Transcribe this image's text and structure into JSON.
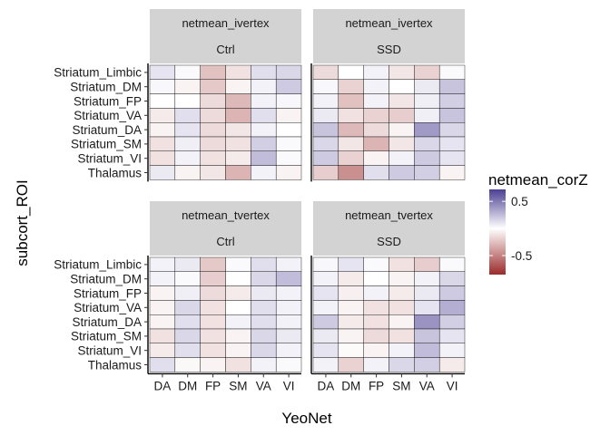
{
  "chart_data": {
    "type": "heatmap",
    "xlabel": "YeoNet",
    "ylabel": "subcort_ROI",
    "x_categories": [
      "DA",
      "DM",
      "FP",
      "SM",
      "VA",
      "VI"
    ],
    "y_categories": [
      "Striatum_Limbic",
      "Striatum_DM",
      "Striatum_FP",
      "Striatum_VA",
      "Striatum_DA",
      "Striatum_SM",
      "Striatum_VI",
      "Thalamus"
    ],
    "legend": {
      "title": "netmean_corZ",
      "ticks": [
        {
          "label": "0.5",
          "value": 0.5
        },
        {
          "label": "-0.5",
          "value": -0.5
        }
      ],
      "range": [
        -0.85,
        0.72
      ],
      "colors": {
        "low": "#9b2b2b",
        "mid": "#ffffff",
        "high": "#4b3f93"
      },
      "placement": "right"
    },
    "panels": [
      {
        "row_label": "netmean_ivertex",
        "col_label": "Ctrl",
        "values": [
          [
            0.1,
            0.02,
            -0.25,
            -0.12,
            0.12,
            0.15
          ],
          [
            0.03,
            -0.05,
            -0.22,
            -0.05,
            0.05,
            0.2
          ],
          [
            0.0,
            0.0,
            -0.15,
            -0.28,
            0.05,
            0.03
          ],
          [
            -0.08,
            0.12,
            -0.15,
            -0.3,
            0.12,
            -0.05
          ],
          [
            -0.05,
            0.1,
            -0.15,
            -0.1,
            0.05,
            0.0
          ],
          [
            -0.12,
            0.06,
            -0.15,
            -0.12,
            0.18,
            0.02
          ],
          [
            -0.12,
            0.05,
            -0.12,
            -0.08,
            0.25,
            0.02
          ],
          [
            0.08,
            -0.05,
            -0.1,
            -0.3,
            0.05,
            -0.05
          ]
        ]
      },
      {
        "row_label": "netmean_ivertex",
        "col_label": "SSD",
        "values": [
          [
            -0.15,
            0.0,
            0.05,
            -0.1,
            -0.18,
            0.02
          ],
          [
            0.03,
            -0.18,
            0.05,
            0.0,
            0.08,
            0.22
          ],
          [
            0.05,
            -0.25,
            0.05,
            -0.1,
            0.06,
            0.18
          ],
          [
            0.08,
            -0.12,
            -0.18,
            -0.2,
            0.06,
            0.22
          ],
          [
            0.22,
            -0.28,
            -0.15,
            -0.05,
            0.38,
            0.15
          ],
          [
            0.15,
            -0.1,
            -0.3,
            -0.1,
            0.15,
            0.1
          ],
          [
            0.2,
            -0.18,
            -0.05,
            0.05,
            0.2,
            0.1
          ],
          [
            -0.2,
            -0.45,
            0.12,
            0.2,
            0.18,
            -0.05
          ]
        ]
      },
      {
        "row_label": "netmean_tvertex",
        "col_label": "Ctrl",
        "values": [
          [
            0.05,
            0.08,
            -0.22,
            0.02,
            0.12,
            0.05
          ],
          [
            0.05,
            0.02,
            -0.2,
            0.0,
            0.15,
            0.25
          ],
          [
            -0.05,
            0.06,
            -0.15,
            -0.08,
            0.08,
            0.05
          ],
          [
            -0.05,
            0.15,
            -0.12,
            0.0,
            0.12,
            0.05
          ],
          [
            -0.05,
            0.12,
            -0.12,
            0.05,
            0.12,
            0.05
          ],
          [
            -0.12,
            0.15,
            -0.12,
            -0.05,
            0.15,
            0.08
          ],
          [
            -0.08,
            0.12,
            -0.12,
            -0.05,
            0.15,
            0.05
          ],
          [
            0.12,
            -0.03,
            -0.05,
            -0.12,
            0.05,
            0.02
          ]
        ]
      },
      {
        "row_label": "netmean_tvertex",
        "col_label": "SSD",
        "values": [
          [
            0.03,
            0.1,
            0.02,
            -0.12,
            -0.2,
            0.02
          ],
          [
            0.05,
            -0.08,
            0.0,
            -0.05,
            0.05,
            0.15
          ],
          [
            0.1,
            -0.06,
            0.05,
            -0.08,
            0.08,
            0.2
          ],
          [
            0.05,
            -0.05,
            -0.12,
            -0.12,
            0.1,
            0.3
          ],
          [
            0.2,
            -0.08,
            -0.12,
            -0.05,
            0.4,
            0.18
          ],
          [
            0.08,
            -0.05,
            -0.15,
            -0.12,
            0.22,
            0.1
          ],
          [
            0.1,
            -0.02,
            -0.05,
            0.05,
            0.25,
            0.05
          ],
          [
            0.05,
            -0.18,
            0.05,
            0.15,
            0.18,
            -0.08
          ]
        ]
      }
    ]
  }
}
